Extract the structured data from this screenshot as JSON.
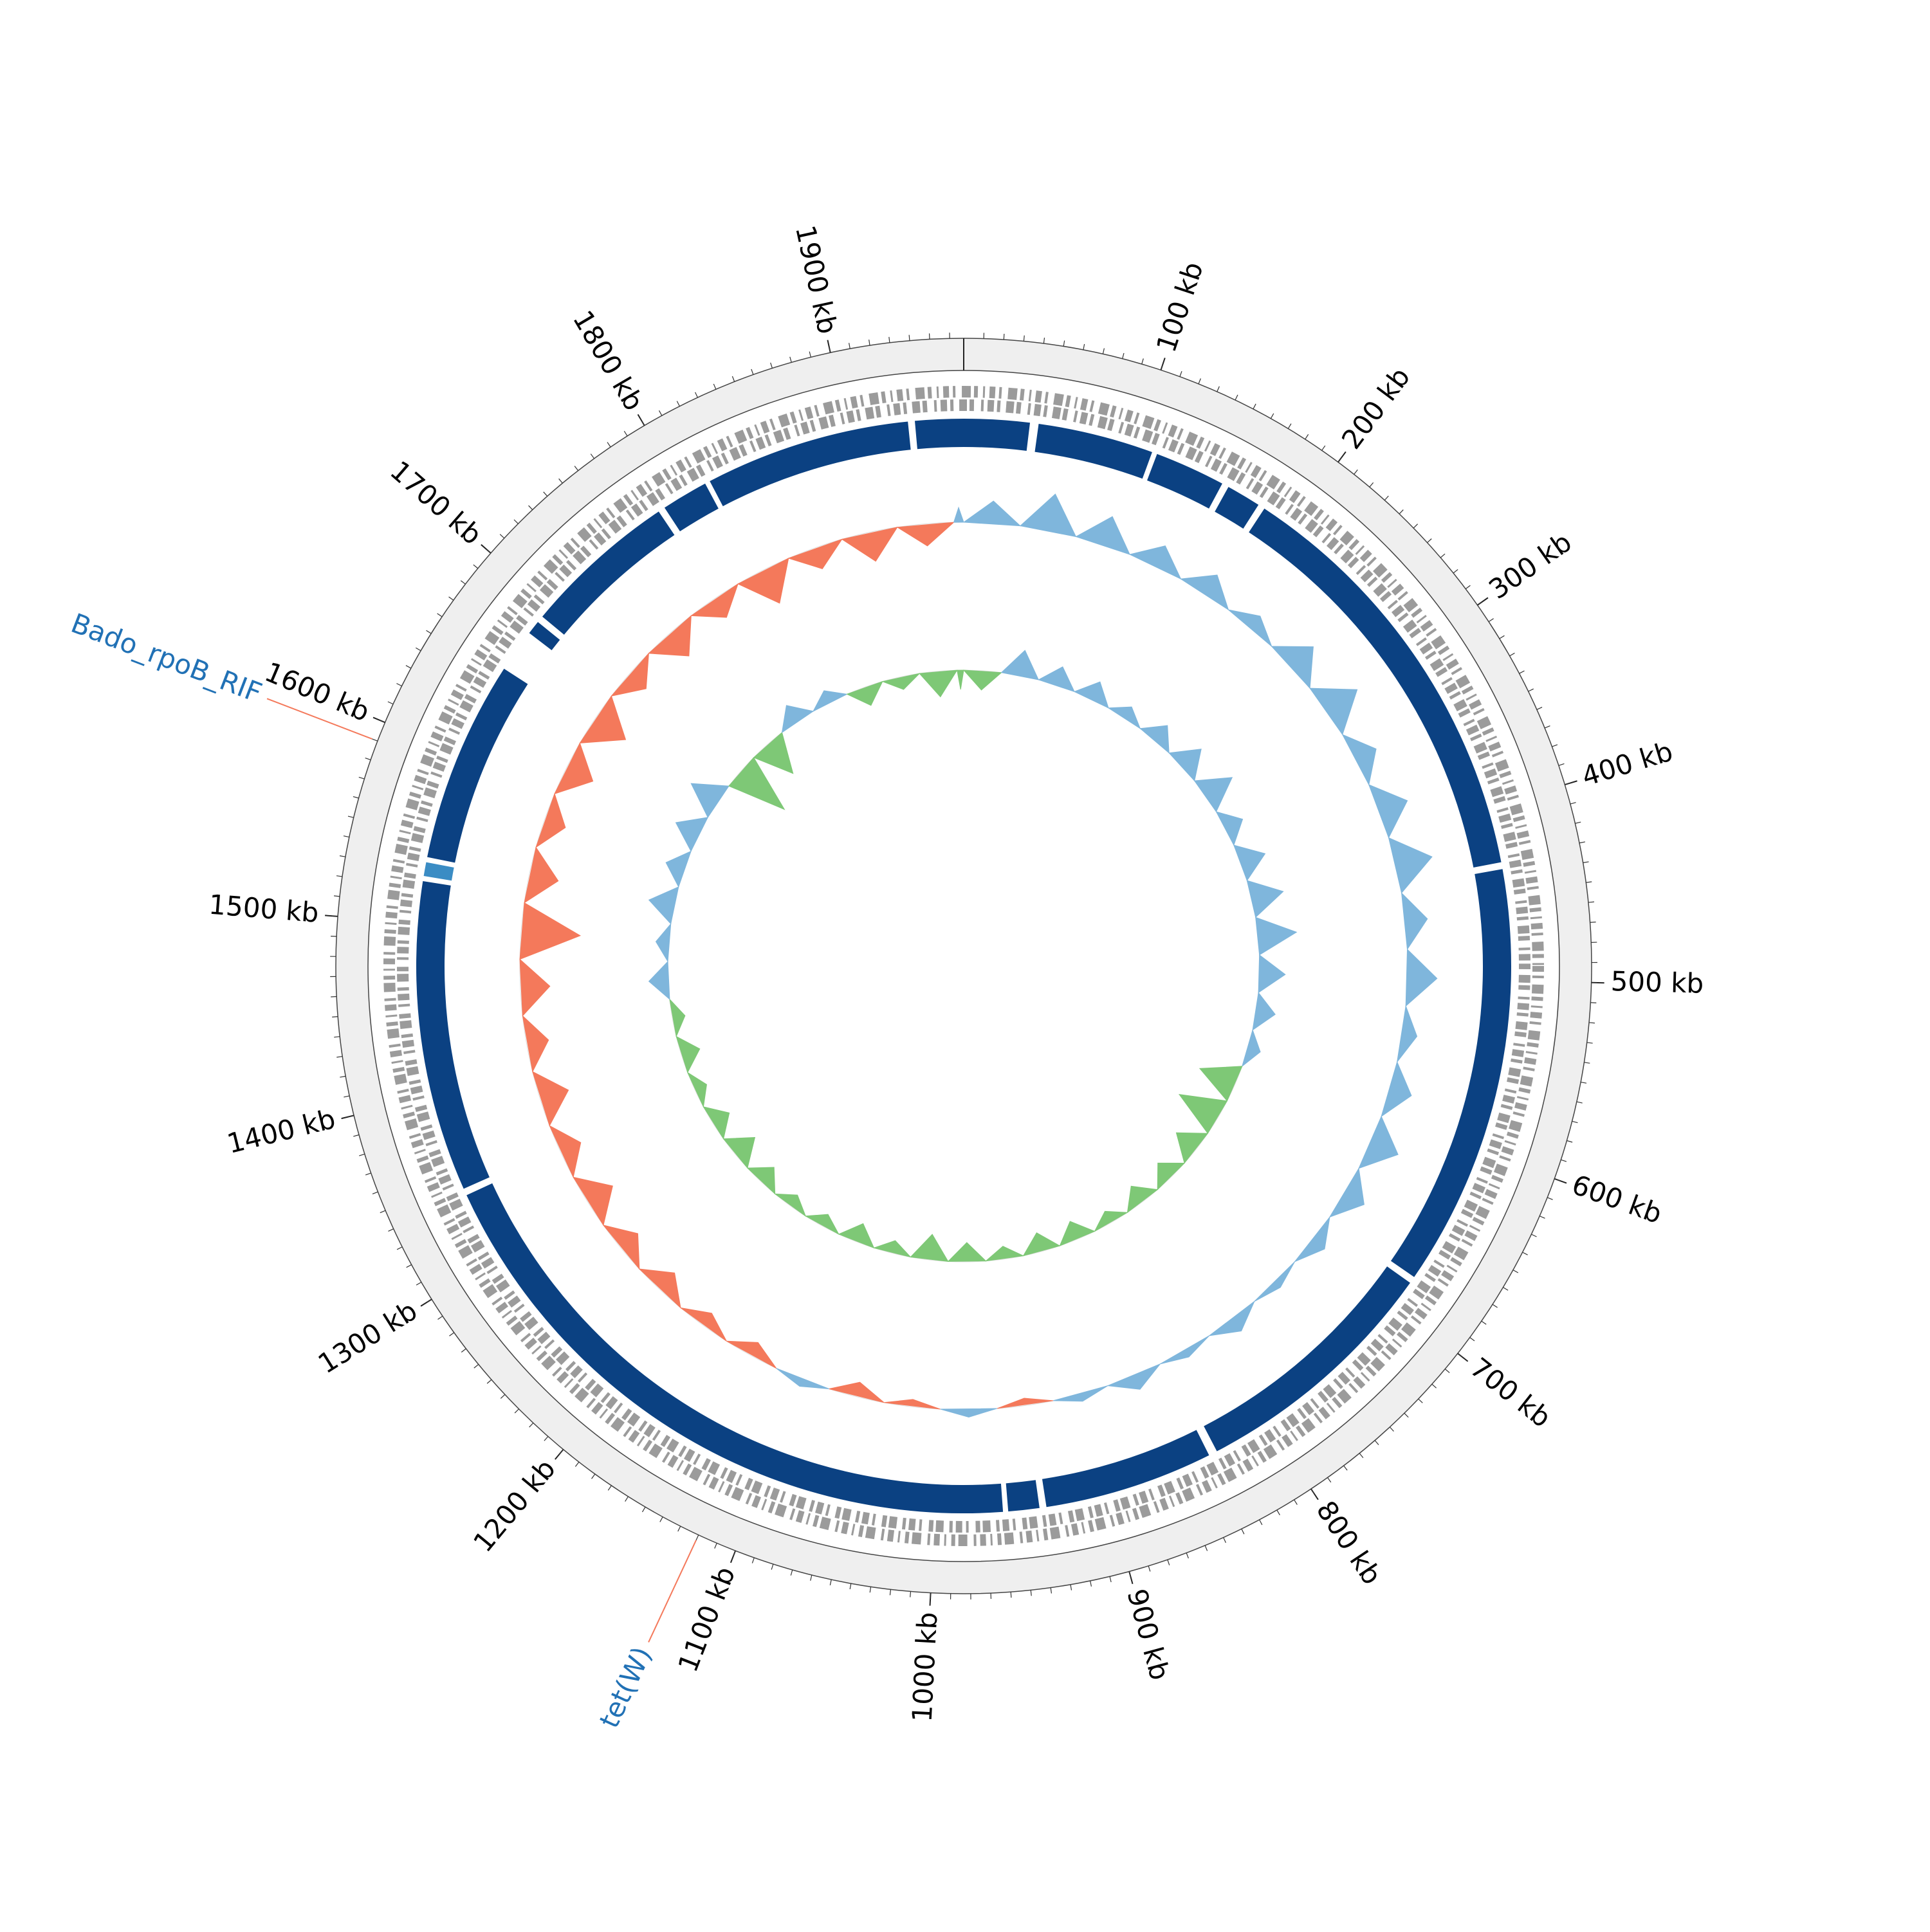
{
  "chart_data": {
    "type": "circular_genome",
    "xlim": [
      0,
      1967
    ],
    "xticks": [
      {
        "value": 100,
        "label": "100 kb"
      },
      {
        "value": 200,
        "label": "200 kb"
      },
      {
        "value": 300,
        "label": "300 kb"
      },
      {
        "value": 400,
        "label": "400 kb"
      },
      {
        "value": 500,
        "label": "500 kb"
      },
      {
        "value": 600,
        "label": "600 kb"
      },
      {
        "value": 700,
        "label": "700 kb"
      },
      {
        "value": 800,
        "label": "800 kb"
      },
      {
        "value": 900,
        "label": "900 kb"
      },
      {
        "value": 1000,
        "label": "1000 kb"
      },
      {
        "value": 1100,
        "label": "1100 kb"
      },
      {
        "value": 1200,
        "label": "1200 kb"
      },
      {
        "value": 1300,
        "label": "1300 kb"
      },
      {
        "value": 1400,
        "label": "1400 kb"
      },
      {
        "value": 1500,
        "label": "1500 kb"
      },
      {
        "value": 1600,
        "label": "1600 kb"
      },
      {
        "value": 1700,
        "label": "1700 kb"
      },
      {
        "value": 1800,
        "label": "1800 kb"
      },
      {
        "value": 1900,
        "label": "1900 kb"
      }
    ],
    "contig_color": "#0b4182",
    "contigs": [
      {
        "start": 0,
        "end": 38
      },
      {
        "start": 43,
        "end": 110
      },
      {
        "start": 113,
        "end": 154
      },
      {
        "start": 158,
        "end": 178
      },
      {
        "start": 182,
        "end": 432
      },
      {
        "start": 436,
        "end": 681
      },
      {
        "start": 685,
        "end": 833
      },
      {
        "start": 838,
        "end": 936
      },
      {
        "start": 940,
        "end": 958
      },
      {
        "start": 961,
        "end": 1340
      },
      {
        "start": 1344,
        "end": 1524
      },
      {
        "start": 1527,
        "end": 1535,
        "color": "#3a8cc4"
      },
      {
        "start": 1538,
        "end": 1655
      },
      {
        "start": 1680,
        "end": 1688
      },
      {
        "start": 1692,
        "end": 1782
      },
      {
        "start": 1786,
        "end": 1813
      },
      {
        "start": 1816,
        "end": 1935
      },
      {
        "start": 1939,
        "end": 1967
      }
    ],
    "x": [
      0,
      40,
      80,
      120,
      160,
      200,
      240,
      280,
      320,
      360,
      400,
      440,
      480,
      520,
      560,
      600,
      640,
      680,
      720,
      760,
      800,
      840,
      880,
      920,
      960,
      1000,
      1040,
      1080,
      1120,
      1160,
      1200,
      1240,
      1280,
      1320,
      1360,
      1400,
      1440,
      1480,
      1520,
      1560,
      1600,
      1640,
      1680,
      1720,
      1760,
      1800,
      1840,
      1880,
      1920,
      1960
    ],
    "gc_content": {
      "positive_color": "#7fb6dc",
      "negative_color": "#f4795b",
      "values": [
        0.3,
        0.5,
        0.4,
        0.3,
        0.3,
        0.2,
        0.4,
        0.5,
        0.3,
        0.4,
        0.5,
        0.3,
        0.4,
        0.2,
        0.3,
        0.4,
        0.3,
        0.2,
        0.1,
        0.2,
        0.1,
        0.2,
        0.1,
        -0.1,
        0.1,
        -0.1,
        -0.2,
        0.1,
        -0.2,
        -0.2,
        -0.3,
        -0.3,
        -0.4,
        -0.3,
        -0.4,
        -0.3,
        -0.4,
        -0.8,
        -0.4,
        -0.3,
        -0.4,
        -0.5,
        -0.3,
        -0.4,
        -0.3,
        -0.5,
        -0.3,
        -0.4,
        -0.3,
        0.2
      ]
    },
    "gc_skew": {
      "positive_color": "#7fb6dc",
      "negative_color": "#7ec876",
      "values": [
        -0.3,
        0.4,
        0.3,
        0.3,
        0.2,
        0.3,
        0.4,
        0.5,
        0.3,
        0.4,
        0.5,
        0.6,
        0.4,
        0.3,
        0.2,
        -0.6,
        -0.7,
        -0.4,
        -0.3,
        -0.3,
        -0.2,
        -0.3,
        -0.3,
        -0.2,
        -0.3,
        -0.4,
        -0.2,
        -0.3,
        -0.2,
        -0.2,
        -0.3,
        -0.4,
        -0.3,
        -0.2,
        -0.3,
        -0.2,
        0.3,
        0.2,
        0.4,
        0.3,
        0.4,
        0.5,
        -0.9,
        -0.6,
        0.3,
        0.2,
        -0.3,
        -0.2,
        -0.4,
        -0.3
      ]
    },
    "annotations": [
      {
        "label": "Bado_rpoB_RIF",
        "position": 1590
      },
      {
        "label": "tet(W)",
        "position": 1120
      }
    ],
    "annotation_text_color": "#2171b5",
    "annotation_line_color": "#f4795b"
  }
}
